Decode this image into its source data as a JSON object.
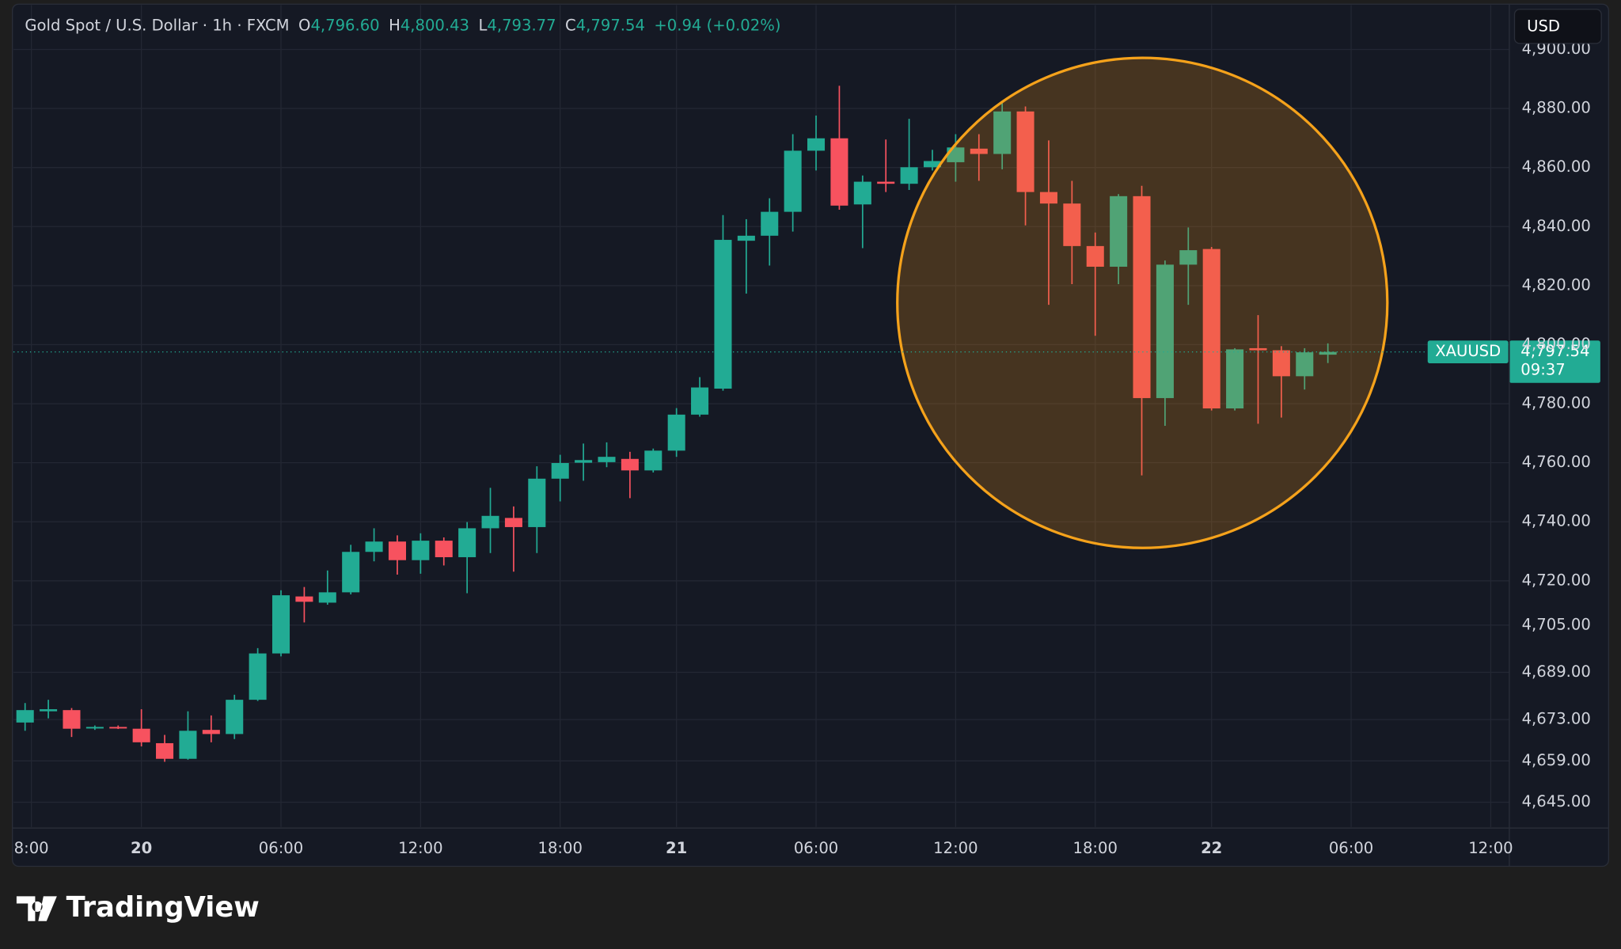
{
  "header": {
    "title": "Gold Spot / U.S. Dollar · 1h · FXCM",
    "o_label": "O",
    "o_value": "4,796.60",
    "h_label": "H",
    "h_value": "4,800.43",
    "l_label": "L",
    "l_value": "4,793.77",
    "c_label": "C",
    "c_value": "4,797.54",
    "change": "+0.94 (+0.02%)"
  },
  "currency": "USD",
  "price_tag": {
    "symbol": "XAUUSD",
    "price": "4,797.54",
    "countdown": "09:37"
  },
  "brand": "TradingView",
  "chart_data": {
    "type": "candlestick",
    "x": [
      0,
      1,
      2,
      3,
      4,
      5,
      6,
      7,
      8,
      9,
      10,
      11,
      12,
      13,
      14,
      15,
      16,
      17,
      18,
      19,
      20,
      21,
      22,
      23,
      24,
      25,
      26,
      27,
      28,
      29,
      30,
      31,
      32,
      33,
      34,
      35,
      36,
      37,
      38,
      39,
      40,
      41,
      42,
      43,
      44,
      45,
      46,
      47,
      48,
      49,
      50,
      51,
      52,
      53,
      54,
      55,
      56
    ],
    "open": [
      4672.0,
      4675.8,
      4676.2,
      4670.2,
      4670.5,
      4669.9,
      4665.0,
      4659.7,
      4669.5,
      4668.1,
      4679.7,
      4695.4,
      4714.7,
      4712.6,
      4716.1,
      4729.8,
      4733.3,
      4727.0,
      4733.6,
      4728.0,
      4737.8,
      4741.3,
      4738.2,
      4754.6,
      4760.0,
      4760.2,
      4761.3,
      4757.4,
      4764.1,
      4776.3,
      4785.1,
      4835.2,
      4836.9,
      4845.0,
      4865.7,
      4869.9,
      4847.5,
      4855.2,
      4854.5,
      4860.1,
      4861.8,
      4866.4,
      4864.6,
      4879.0,
      4851.7,
      4847.8,
      4833.4,
      4826.4,
      4850.3,
      4781.9,
      4827.1,
      4832.4,
      4778.4,
      4798.8,
      4798.1,
      4789.3,
      4796.6
    ],
    "high": [
      4678.6,
      4679.7,
      4676.9,
      4671.0,
      4671.0,
      4676.5,
      4667.8,
      4675.8,
      4674.4,
      4681.4,
      4697.2,
      4716.8,
      4717.9,
      4723.5,
      4732.2,
      4737.8,
      4735.4,
      4736.1,
      4734.7,
      4739.9,
      4751.5,
      4745.2,
      4758.8,
      4762.7,
      4766.5,
      4766.9,
      4763.7,
      4764.8,
      4778.5,
      4789.0,
      4843.9,
      4842.5,
      4849.6,
      4871.3,
      4877.6,
      4887.7,
      4857.3,
      4869.5,
      4876.5,
      4866.0,
      4871.3,
      4871.3,
      4881.8,
      4880.7,
      4869.2,
      4855.5,
      4838.0,
      4851.0,
      4853.8,
      4828.5,
      4839.7,
      4833.1,
      4798.8,
      4810.0,
      4799.5,
      4798.8,
      4800.43
    ],
    "low": [
      4669.2,
      4673.4,
      4667.1,
      4669.5,
      4669.8,
      4663.9,
      4658.7,
      4659.4,
      4665.3,
      4666.4,
      4679.3,
      4694.4,
      4705.9,
      4711.9,
      4715.4,
      4726.6,
      4722.1,
      4722.4,
      4725.2,
      4715.8,
      4729.4,
      4723.1,
      4729.4,
      4746.9,
      4753.9,
      4758.5,
      4748.0,
      4756.7,
      4762.0,
      4775.6,
      4784.4,
      4817.3,
      4826.8,
      4838.3,
      4859.0,
      4845.7,
      4832.7,
      4851.7,
      4852.4,
      4859.0,
      4855.2,
      4855.5,
      4859.4,
      4840.4,
      4813.5,
      4820.5,
      4803.0,
      4820.5,
      4755.7,
      4772.5,
      4813.5,
      4777.7,
      4777.7,
      4773.2,
      4775.3,
      4784.8,
      4793.77
    ],
    "close": [
      4676.2,
      4676.5,
      4669.9,
      4670.5,
      4670.3,
      4665.3,
      4659.7,
      4669.2,
      4668.1,
      4679.7,
      4695.4,
      4715.1,
      4712.9,
      4716.1,
      4729.8,
      4733.3,
      4727.0,
      4733.6,
      4728.0,
      4737.8,
      4742.0,
      4738.2,
      4754.6,
      4759.9,
      4760.9,
      4762.0,
      4757.4,
      4764.1,
      4776.3,
      4785.5,
      4835.5,
      4836.9,
      4845.0,
      4865.7,
      4869.9,
      4847.1,
      4855.2,
      4854.5,
      4860.1,
      4862.2,
      4866.8,
      4864.6,
      4879.0,
      4851.7,
      4847.8,
      4833.4,
      4826.4,
      4850.3,
      4781.9,
      4827.1,
      4832.0,
      4778.4,
      4798.4,
      4798.1,
      4789.3,
      4797.4,
      4797.54
    ],
    "up_color": "#22ab94",
    "down_color": "#f7525f",
    "xlim": [
      -0.5,
      63.8
    ],
    "xticks": [
      {
        "value": 0.27,
        "label": "8:00"
      },
      {
        "value": 5,
        "label": "20"
      },
      {
        "value": 11,
        "label": "06:00"
      },
      {
        "value": 17,
        "label": "12:00"
      },
      {
        "value": 23,
        "label": "18:00"
      },
      {
        "value": 28,
        "label": "21"
      },
      {
        "value": 34,
        "label": "06:00"
      },
      {
        "value": 40,
        "label": "12:00"
      },
      {
        "value": 46,
        "label": "18:00"
      },
      {
        "value": 51,
        "label": "22"
      },
      {
        "value": 57,
        "label": "06:00"
      },
      {
        "value": 63,
        "label": "12:00"
      }
    ],
    "ylim": [
      4636.6,
      4915
    ],
    "yticks": [
      {
        "value": 4645,
        "label": "4,645.00"
      },
      {
        "value": 4659,
        "label": "4,659.00"
      },
      {
        "value": 4673,
        "label": "4,673.00"
      },
      {
        "value": 4689,
        "label": "4,689.00"
      },
      {
        "value": 4705,
        "label": "4,705.00"
      },
      {
        "value": 4720,
        "label": "4,720.00"
      },
      {
        "value": 4740,
        "label": "4,740.00"
      },
      {
        "value": 4760,
        "label": "4,760.00"
      },
      {
        "value": 4780,
        "label": "4,780.00"
      },
      {
        "value": 4800,
        "label": "4,800.00"
      },
      {
        "value": 4820,
        "label": "4,820.00"
      },
      {
        "value": 4840,
        "label": "4,840.00"
      },
      {
        "value": 4860,
        "label": "4,860.00"
      },
      {
        "value": 4880,
        "label": "4,880.00"
      },
      {
        "value": 4900,
        "label": "4,900.00"
      }
    ],
    "grid": true
  }
}
